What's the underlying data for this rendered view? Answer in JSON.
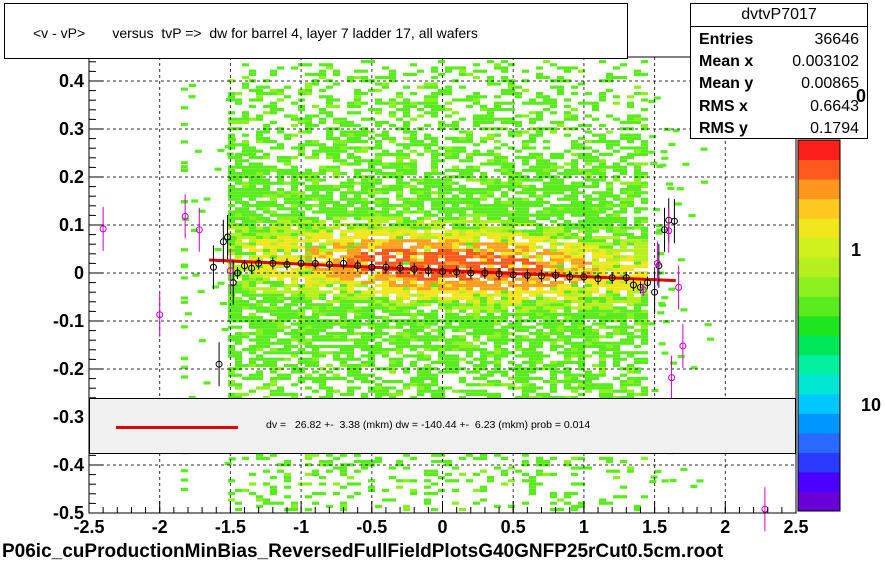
{
  "title": "<v - vP>       versus  tvP =>  dw for barrel 4, layer 7 ladder 17, all wafers",
  "stats": {
    "name": "dvtvP7017",
    "rows": [
      {
        "label": "Entries",
        "value": "36646"
      },
      {
        "label": "Mean x",
        "value": "0.003102"
      },
      {
        "label": "Mean y",
        "value": "0.00865"
      },
      {
        "label": "RMS x",
        "value": "0.6643"
      },
      {
        "label": "RMS y",
        "value": "0.1794"
      }
    ]
  },
  "legend": {
    "text": "dv =   26.82 +-  3.38 (mkm) dw = -140.44 +-  6.23 (mkm) prob = 0.014",
    "line_color": "#e00000"
  },
  "footer": "P06ic_cuProductionMinBias_ReversedFullFieldPlotsG40GNFP25rCut0.5cm.root",
  "palette": {
    "labels": [
      "0",
      "1",
      "10"
    ],
    "colors": [
      "#6a00d8",
      "#4a00ff",
      "#2a3aff",
      "#2a6aff",
      "#0096ff",
      "#00c8ff",
      "#00e6d2",
      "#00f0a0",
      "#00e65a",
      "#1ee61e",
      "#5aeb1e",
      "#8cf01e",
      "#b4f01e",
      "#d2f01e",
      "#f0e61e",
      "#ffc81e",
      "#ff961e",
      "#ff5a1e",
      "#ff1e1e"
    ]
  },
  "chart_data": {
    "type": "scatter",
    "subtype": "2d-histogram-with-profile-and-linear-fit",
    "xlim": [
      -2.5,
      2.5
    ],
    "ylim": [
      -0.5,
      0.45
    ],
    "x_ticks": [
      "-2.5",
      "-2",
      "-1.5",
      "-1",
      "-0.5",
      "0",
      "0.5",
      "1",
      "1.5",
      "2",
      "2.5"
    ],
    "y_ticks": [
      "-0.5",
      "-0.4",
      "-0.3",
      "-0.2",
      "-0.1",
      "0",
      "0.1",
      "0.2",
      "0.3",
      "0.4"
    ],
    "grid": true,
    "fit_line": {
      "x": [
        -1.65,
        1.65
      ],
      "y": [
        0.027,
        -0.016
      ],
      "color": "#e00000"
    },
    "profile_points": [
      {
        "x": -2.4,
        "y": 0.092,
        "color": "#cc00cc"
      },
      {
        "x": -2.0,
        "y": -0.087,
        "color": "#cc00cc"
      },
      {
        "x": -1.82,
        "y": 0.118,
        "color": "#cc00cc"
      },
      {
        "x": -1.72,
        "y": 0.09,
        "color": "#cc00cc"
      },
      {
        "x": -1.62,
        "y": 0.012,
        "color": "#000000"
      },
      {
        "x": -1.58,
        "y": -0.19,
        "color": "#000000"
      },
      {
        "x": -1.55,
        "y": 0.065,
        "color": "#000000"
      },
      {
        "x": -1.52,
        "y": 0.075,
        "color": "#000000"
      },
      {
        "x": -1.48,
        "y": -0.02,
        "color": "#000000"
      },
      {
        "x": -1.45,
        "y": 0.0,
        "color": "#000000"
      },
      {
        "x": -1.4,
        "y": 0.015,
        "color": "#000000"
      },
      {
        "x": -1.35,
        "y": 0.01,
        "color": "#000000"
      },
      {
        "x": -1.3,
        "y": 0.02,
        "color": "#000000"
      },
      {
        "x": -1.2,
        "y": 0.02,
        "color": "#000000"
      },
      {
        "x": -1.1,
        "y": 0.018,
        "color": "#000000"
      },
      {
        "x": -1.0,
        "y": 0.02,
        "color": "#000000"
      },
      {
        "x": -0.9,
        "y": 0.02,
        "color": "#000000"
      },
      {
        "x": -0.8,
        "y": 0.018,
        "color": "#000000"
      },
      {
        "x": -0.7,
        "y": 0.02,
        "color": "#000000"
      },
      {
        "x": -0.6,
        "y": 0.015,
        "color": "#000000"
      },
      {
        "x": -0.5,
        "y": 0.012,
        "color": "#000000"
      },
      {
        "x": -0.4,
        "y": 0.012,
        "color": "#000000"
      },
      {
        "x": -0.3,
        "y": 0.01,
        "color": "#000000"
      },
      {
        "x": -0.2,
        "y": 0.008,
        "color": "#000000"
      },
      {
        "x": -0.1,
        "y": 0.005,
        "color": "#000000"
      },
      {
        "x": 0.0,
        "y": 0.003,
        "color": "#000000"
      },
      {
        "x": 0.1,
        "y": 0.002,
        "color": "#000000"
      },
      {
        "x": 0.2,
        "y": 0.0,
        "color": "#000000"
      },
      {
        "x": 0.3,
        "y": 0.0,
        "color": "#000000"
      },
      {
        "x": 0.4,
        "y": -0.002,
        "color": "#000000"
      },
      {
        "x": 0.5,
        "y": -0.004,
        "color": "#000000"
      },
      {
        "x": 0.6,
        "y": -0.005,
        "color": "#000000"
      },
      {
        "x": 0.7,
        "y": -0.006,
        "color": "#000000"
      },
      {
        "x": 0.8,
        "y": -0.005,
        "color": "#000000"
      },
      {
        "x": 0.9,
        "y": -0.008,
        "color": "#000000"
      },
      {
        "x": 1.0,
        "y": -0.008,
        "color": "#000000"
      },
      {
        "x": 1.1,
        "y": -0.012,
        "color": "#000000"
      },
      {
        "x": 1.2,
        "y": -0.01,
        "color": "#000000"
      },
      {
        "x": 1.3,
        "y": -0.01,
        "color": "#000000"
      },
      {
        "x": 1.35,
        "y": -0.025,
        "color": "#000000"
      },
      {
        "x": 1.4,
        "y": -0.03,
        "color": "#000000"
      },
      {
        "x": 1.45,
        "y": -0.02,
        "color": "#000000"
      },
      {
        "x": 1.5,
        "y": -0.04,
        "color": "#000000"
      },
      {
        "x": 1.53,
        "y": 0.015,
        "color": "#000000"
      },
      {
        "x": 1.57,
        "y": 0.09,
        "color": "#000000"
      },
      {
        "x": 1.6,
        "y": 0.11,
        "color": "#000000"
      },
      {
        "x": 1.64,
        "y": 0.108,
        "color": "#000000"
      },
      {
        "x": 1.52,
        "y": 0.02,
        "color": "#cc00cc"
      },
      {
        "x": 1.6,
        "y": 0.088,
        "color": "#cc00cc"
      },
      {
        "x": 1.67,
        "y": -0.03,
        "color": "#cc00cc"
      },
      {
        "x": 1.7,
        "y": -0.152,
        "color": "#cc00cc"
      },
      {
        "x": 1.62,
        "y": -0.218,
        "color": "#cc00cc"
      },
      {
        "x": 2.28,
        "y": -0.492,
        "color": "#cc00cc"
      },
      {
        "x": -1.5,
        "y": 0.005,
        "color": "#cc00cc"
      },
      {
        "x": 1.42,
        "y": -0.035,
        "color": "#cc00cc"
      }
    ]
  }
}
